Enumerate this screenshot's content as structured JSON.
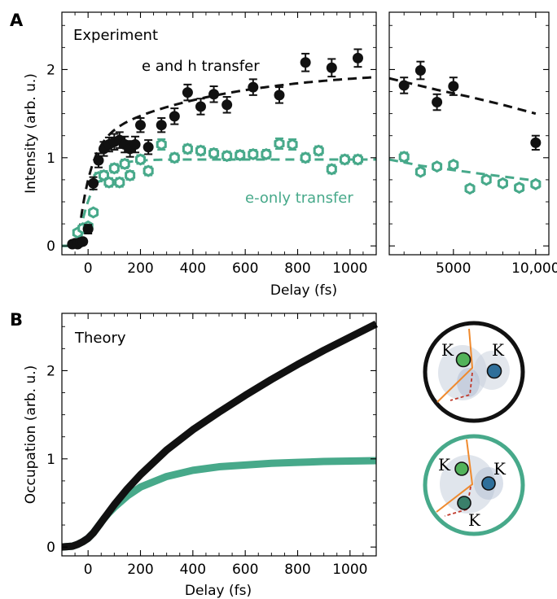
{
  "panel_labels": {
    "a": "A",
    "b": "B"
  },
  "colors": {
    "e_and_h": "#111111",
    "e_only": "#47a98a",
    "inset_top_ring": "#111111",
    "inset_bottom_ring": "#47a98a",
    "boundary": "#ef8a2e",
    "path": "#c0392b"
  },
  "chart_data": [
    {
      "id": "panel-a-left",
      "type": "scatter",
      "title": "",
      "annotation": "Experiment",
      "xlabel": "Delay (fs)",
      "ylabel": "Intensity (arb. u.)",
      "xlim": [
        -100,
        1100
      ],
      "ylim": [
        -0.1,
        2.65
      ],
      "xticks": [
        0,
        200,
        400,
        600,
        800,
        1000
      ],
      "xticklabels": [
        "0",
        "200",
        "400",
        "600",
        "800",
        "1000"
      ],
      "yticks": [
        0,
        1,
        2
      ],
      "yticklabels": [
        "0",
        "1",
        "2"
      ],
      "series": [
        {
          "name": "e and h transfer",
          "marker": "filled-circle",
          "x": [
            -60,
            -50,
            -40,
            -30,
            -20,
            0,
            20,
            40,
            60,
            80,
            100,
            120,
            140,
            160,
            180,
            200,
            230,
            280,
            330,
            380,
            430,
            480,
            530,
            630,
            730,
            830,
            930,
            1030
          ],
          "y": [
            0.02,
            0.03,
            0.02,
            0.04,
            0.05,
            0.19,
            0.71,
            0.97,
            1.1,
            1.15,
            1.18,
            1.2,
            1.15,
            1.1,
            1.15,
            1.37,
            1.12,
            1.37,
            1.47,
            1.74,
            1.58,
            1.72,
            1.6,
            1.8,
            1.71,
            2.08,
            2.02,
            2.13
          ],
          "err": [
            0.03,
            0.03,
            0.03,
            0.03,
            0.03,
            0.05,
            0.07,
            0.08,
            0.08,
            0.08,
            0.09,
            0.09,
            0.09,
            0.09,
            0.09,
            0.08,
            0.08,
            0.08,
            0.09,
            0.09,
            0.09,
            0.09,
            0.09,
            0.09,
            0.09,
            0.1,
            0.1,
            0.1
          ]
        },
        {
          "name": "e-only transfer",
          "marker": "open-hexagon",
          "x": [
            -40,
            -20,
            0,
            20,
            40,
            60,
            80,
            100,
            120,
            140,
            160,
            200,
            230,
            280,
            330,
            380,
            430,
            480,
            530,
            580,
            630,
            680,
            730,
            780,
            830,
            880,
            930,
            980,
            1030
          ],
          "y": [
            0.15,
            0.2,
            0.22,
            0.38,
            0.78,
            0.8,
            0.72,
            0.88,
            0.72,
            0.93,
            0.8,
            0.98,
            0.85,
            1.15,
            1.0,
            1.1,
            1.08,
            1.05,
            1.02,
            1.03,
            1.04,
            1.04,
            1.16,
            1.15,
            1.0,
            1.08,
            0.87,
            0.98,
            0.98
          ],
          "err": [
            0.03,
            0.03,
            0.03,
            0.04,
            0.05,
            0.05,
            0.05,
            0.05,
            0.05,
            0.05,
            0.05,
            0.05,
            0.05,
            0.06,
            0.05,
            0.05,
            0.05,
            0.05,
            0.05,
            0.05,
            0.05,
            0.05,
            0.06,
            0.06,
            0.05,
            0.05,
            0.05,
            0.05,
            0.05
          ]
        }
      ],
      "fits": [
        {
          "name": "e and h transfer fit",
          "style": "dashed",
          "amplitude": 2.0,
          "rise_fs": 45,
          "slow_fraction": 0.42,
          "slow_fs": 500
        },
        {
          "name": "e-only transfer fit",
          "style": "dashed",
          "amplitude": 0.98,
          "rise_fs": 55
        }
      ]
    },
    {
      "id": "panel-a-right",
      "type": "scatter",
      "xlim": [
        1100,
        10800
      ],
      "ylim": [
        -0.1,
        2.65
      ],
      "xticks": [
        5000,
        10000
      ],
      "xticklabels": [
        "5000",
        "10,000"
      ],
      "series": [
        {
          "name": "e and h transfer",
          "marker": "filled-circle",
          "x": [
            2000,
            3000,
            4000,
            5000,
            10000
          ],
          "y": [
            1.82,
            1.99,
            1.63,
            1.81,
            1.17
          ],
          "err": [
            0.09,
            0.1,
            0.09,
            0.1,
            0.08
          ]
        },
        {
          "name": "e-only transfer",
          "marker": "open-hexagon",
          "x": [
            2000,
            3000,
            4000,
            5000,
            6000,
            7000,
            8000,
            9000,
            10000
          ],
          "y": [
            1.01,
            0.84,
            0.9,
            0.92,
            0.65,
            0.75,
            0.71,
            0.66,
            0.7
          ],
          "err": [
            0.05,
            0.04,
            0.04,
            0.04,
            0.04,
            0.04,
            0.04,
            0.04,
            0.04
          ]
        }
      ],
      "fits": [
        {
          "name": "e and h transfer fit",
          "style": "dashed",
          "points": [
            [
              1100,
              1.9
            ],
            [
              2000,
              1.86
            ],
            [
              4000,
              1.77
            ],
            [
              6000,
              1.69
            ],
            [
              8000,
              1.6
            ],
            [
              10000,
              1.5
            ]
          ]
        },
        {
          "name": "e-only transfer fit",
          "style": "dashed",
          "points": [
            [
              1100,
              0.98
            ],
            [
              3000,
              0.91
            ],
            [
              5000,
              0.86
            ],
            [
              7000,
              0.81
            ],
            [
              10000,
              0.74
            ]
          ]
        }
      ]
    },
    {
      "id": "panel-b",
      "type": "line",
      "title": "",
      "annotation": "Theory",
      "xlabel": "Delay (fs)",
      "ylabel": "Occupation (arb. u.)",
      "xlim": [
        -100,
        1100
      ],
      "ylim": [
        -0.1,
        2.65
      ],
      "xticks": [
        0,
        200,
        400,
        600,
        800,
        1000
      ],
      "xticklabels": [
        "0",
        "200",
        "400",
        "600",
        "800",
        "1000"
      ],
      "yticks": [
        0,
        1,
        2
      ],
      "yticklabels": [
        "0",
        "1",
        "2"
      ],
      "series": [
        {
          "name": "e and h transfer",
          "x": [
            -100,
            -80,
            -60,
            -40,
            -20,
            0,
            20,
            40,
            60,
            80,
            100,
            150,
            200,
            300,
            400,
            500,
            600,
            700,
            800,
            900,
            1000,
            1100
          ],
          "y": [
            0.0,
            0.005,
            0.01,
            0.03,
            0.06,
            0.1,
            0.16,
            0.24,
            0.32,
            0.4,
            0.48,
            0.66,
            0.82,
            1.1,
            1.33,
            1.53,
            1.72,
            1.9,
            2.07,
            2.23,
            2.38,
            2.53
          ]
        },
        {
          "name": "e-only transfer",
          "x": [
            -100,
            -80,
            -60,
            -40,
            -20,
            0,
            20,
            40,
            60,
            80,
            100,
            150,
            200,
            300,
            400,
            500,
            600,
            700,
            800,
            900,
            1000,
            1100
          ],
          "y": [
            0.0,
            0.005,
            0.01,
            0.03,
            0.06,
            0.1,
            0.16,
            0.24,
            0.32,
            0.39,
            0.45,
            0.58,
            0.68,
            0.8,
            0.87,
            0.91,
            0.93,
            0.95,
            0.96,
            0.97,
            0.975,
            0.98
          ]
        }
      ]
    }
  ],
  "insets": {
    "valley_label": "K"
  }
}
